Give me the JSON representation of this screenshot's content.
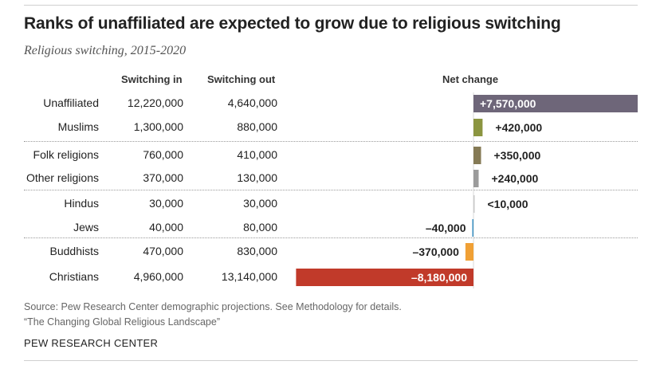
{
  "title": "Ranks of unaffiliated are expected to grow due to religious switching",
  "subtitle": "Religious switching, 2015-2020",
  "columns": {
    "switching_in": "Switching in",
    "switching_out": "Switching out",
    "net_change": "Net change"
  },
  "rows": [
    {
      "category": "Unaffiliated",
      "switching_in": "12,220,000",
      "switching_out": "4,640,000",
      "net_label": "+7,570,000"
    },
    {
      "category": "Muslims",
      "switching_in": "1,300,000",
      "switching_out": "880,000",
      "net_label": "+420,000"
    },
    {
      "category": "Folk religions",
      "switching_in": "760,000",
      "switching_out": "410,000",
      "net_label": "+350,000"
    },
    {
      "category": "Other religions",
      "switching_in": "370,000",
      "switching_out": "130,000",
      "net_label": "+240,000"
    },
    {
      "category": "Hindus",
      "switching_in": "30,000",
      "switching_out": "30,000",
      "net_label": "<10,000"
    },
    {
      "category": "Jews",
      "switching_in": "40,000",
      "switching_out": "80,000",
      "net_label": "–40,000"
    },
    {
      "category": "Buddhists",
      "switching_in": "470,000",
      "switching_out": "830,000",
      "net_label": "–370,000"
    },
    {
      "category": "Christians",
      "switching_in": "4,960,000",
      "switching_out": "13,140,000",
      "net_label": "–8,180,000"
    }
  ],
  "chart_data": {
    "type": "bar",
    "orientation": "horizontal",
    "categories": [
      "Unaffiliated",
      "Muslims",
      "Folk religions",
      "Other religions",
      "Hindus",
      "Jews",
      "Buddhists",
      "Christians"
    ],
    "series": [
      {
        "values": [
          7570000,
          420000,
          350000,
          240000,
          5000,
          -40000,
          -370000,
          -8180000
        ]
      }
    ],
    "colors": [
      "#6e6679",
      "#8b9540",
      "#857a55",
      "#9b9b9b",
      "#c8c8c8",
      "#3a8fc1",
      "#f0a035",
      "#c13a2a"
    ]
  },
  "source": "Source: Pew Research Center demographic projections. See Methodology for details.",
  "report": "“The Changing Global Religious Landscape”",
  "brand": "PEW RESEARCH CENTER"
}
